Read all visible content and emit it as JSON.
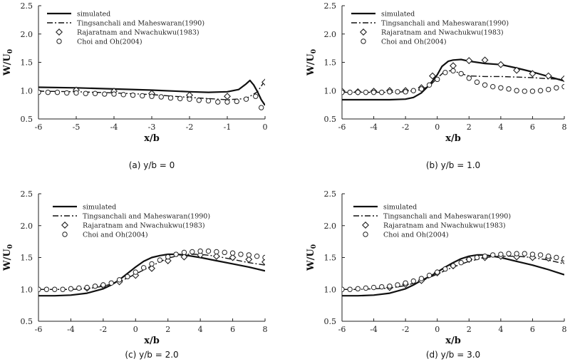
{
  "figure": {
    "panels": [
      {
        "caption": "(a) y/b = 0",
        "xlabel": "x/b",
        "ylabel_main": "W/U",
        "ylabel_sub": "0",
        "xlim": [
          -6,
          0
        ],
        "ylim": [
          0.5,
          2.5
        ],
        "xticks": [
          "-6",
          "-5",
          "-4",
          "-3",
          "-2",
          "-1",
          "0"
        ],
        "yticks": [
          "0.5",
          "1.0",
          "1.5",
          "2.0",
          "2.5"
        ],
        "legend": [
          "simulated",
          "Tingsanchali and Maheswaran(1990)",
          "Rajaratnam and Nwachukwu(1983)",
          "Choi and Oh(2004)"
        ]
      },
      {
        "caption": "(b) y/b = 1.0",
        "xlabel": "x/b",
        "ylabel_main": "W/U",
        "ylabel_sub": "0",
        "xlim": [
          -6,
          8
        ],
        "ylim": [
          0.5,
          2.5
        ],
        "xticks": [
          "-6",
          "-4",
          "-2",
          "0",
          "2",
          "4",
          "6",
          "8"
        ],
        "yticks": [
          "0.5",
          "1.0",
          "1.5",
          "2.0",
          "2.5"
        ],
        "legend": [
          "simulated",
          "Tingsanchali and Maheswaran(1990)",
          "Rajaratnam and Nwachukwu(1983)",
          "Choi and Oh(2004)"
        ]
      },
      {
        "caption": "(c) y/b = 2.0",
        "xlabel": "x/b",
        "ylabel_main": "W/U",
        "ylabel_sub": "0",
        "xlim": [
          -6,
          8
        ],
        "ylim": [
          0.5,
          2.5
        ],
        "xticks": [
          "-6",
          "-4",
          "-2",
          "0",
          "2",
          "4",
          "6",
          "8"
        ],
        "yticks": [
          "0.5",
          "1.0",
          "1.5",
          "2.0",
          "2.5"
        ],
        "legend": [
          "simulated",
          "Tingsanchali and Maheswaran(1990)",
          "Rajaratnam and Nwachukwu(1983)",
          "Choi and Oh(2004)"
        ]
      },
      {
        "caption": "(d) y/b = 3.0",
        "xlabel": "x/b",
        "ylabel_main": "W/U",
        "ylabel_sub": "0",
        "xlim": [
          -6,
          8
        ],
        "ylim": [
          0.5,
          2.5
        ],
        "xticks": [
          "-6",
          "-4",
          "-2",
          "0",
          "2",
          "4",
          "6",
          "8"
        ],
        "yticks": [
          "0.5",
          "1.0",
          "1.5",
          "2.0",
          "2.5"
        ],
        "legend": [
          "simulated",
          "Tingsanchali and Maheswaran(1990)",
          "Rajaratnam and Nwachukwu(1983)",
          "Choi and Oh(2004)"
        ]
      }
    ]
  },
  "chart_data": [
    {
      "type": "line",
      "series": [
        {
          "name": "simulated",
          "style": "solid",
          "x": [
            -6,
            -5,
            -4,
            -3,
            -2,
            -1.5,
            -1,
            -0.7,
            -0.5,
            -0.4,
            -0.3,
            -0.2,
            -0.1,
            0
          ],
          "y": [
            1.06,
            1.05,
            1.03,
            1.01,
            0.98,
            0.97,
            0.98,
            1.02,
            1.12,
            1.18,
            1.1,
            0.98,
            0.84,
            0.74
          ]
        },
        {
          "name": "Tingsanchali and Maheswaran(1990)",
          "style": "dashdot",
          "x": [
            -6,
            -5,
            -4,
            -3,
            -2,
            -1,
            -0.5,
            -0.2,
            0
          ],
          "y": [
            0.99,
            0.98,
            0.96,
            0.93,
            0.88,
            0.84,
            0.86,
            0.98,
            1.18
          ]
        },
        {
          "name": "Rajaratnam and Nwachukwu(1983)",
          "style": "diamond",
          "x": [
            -5,
            -4,
            -3,
            -2,
            -1,
            0
          ],
          "y": [
            1.01,
            0.99,
            0.95,
            0.92,
            0.9,
            1.15
          ]
        },
        {
          "name": "Choi and Oh(2004)",
          "style": "circle",
          "x": [
            -6,
            -5.75,
            -5.5,
            -5.25,
            -5,
            -4.75,
            -4.5,
            -4.25,
            -4,
            -3.75,
            -3.5,
            -3.25,
            -3,
            -2.75,
            -2.5,
            -2.25,
            -2,
            -1.75,
            -1.5,
            -1.25,
            -1,
            -0.75,
            -0.5,
            -0.25,
            -0.1
          ],
          "y": [
            0.97,
            0.97,
            0.97,
            0.96,
            0.96,
            0.95,
            0.95,
            0.94,
            0.94,
            0.93,
            0.92,
            0.91,
            0.9,
            0.89,
            0.87,
            0.86,
            0.85,
            0.83,
            0.82,
            0.8,
            0.8,
            0.81,
            0.85,
            0.9,
            0.7
          ]
        }
      ],
      "xlabel": "x/b",
      "ylabel": "W/U0",
      "xlim": [
        -6,
        0
      ],
      "ylim": [
        0.5,
        2.5
      ],
      "legend": "top-left",
      "grid": false
    },
    {
      "type": "line",
      "series": [
        {
          "name": "simulated",
          "style": "solid",
          "x": [
            -6,
            -3,
            -2,
            -1.5,
            -1,
            -0.5,
            0,
            0.3,
            0.7,
            1,
            1.5,
            2,
            3,
            4,
            5,
            6,
            7,
            8
          ],
          "y": [
            0.84,
            0.84,
            0.85,
            0.88,
            0.96,
            1.1,
            1.28,
            1.43,
            1.52,
            1.54,
            1.55,
            1.52,
            1.48,
            1.46,
            1.4,
            1.33,
            1.25,
            1.17
          ]
        },
        {
          "name": "Tingsanchali and Maheswaran(1990)",
          "style": "dashdot",
          "x": [
            -6,
            -3,
            -2,
            -1,
            -0.5,
            0,
            0.5,
            1,
            1.5,
            2,
            3,
            4,
            5,
            6,
            7,
            8
          ],
          "y": [
            0.97,
            0.97,
            0.98,
            1.02,
            1.08,
            1.22,
            1.35,
            1.35,
            1.3,
            1.26,
            1.25,
            1.25,
            1.24,
            1.23,
            1.21,
            1.2
          ]
        },
        {
          "name": "Rajaratnam and Nwachukwu(1983)",
          "style": "diamond",
          "x": [
            -6,
            -5,
            -4,
            -3,
            -2,
            -1,
            -0.3,
            1,
            2,
            3,
            4,
            5,
            6,
            7,
            8
          ],
          "y": [
            0.99,
            0.98,
            0.99,
            1.0,
            1.0,
            1.05,
            1.26,
            1.44,
            1.53,
            1.54,
            1.46,
            1.36,
            1.3,
            1.26,
            1.21
          ]
        },
        {
          "name": "Choi and Oh(2004)",
          "style": "circle",
          "x": [
            -6,
            -5.5,
            -5,
            -4.5,
            -4,
            -3.5,
            -3,
            -2.5,
            -2,
            -1.5,
            -1,
            -0.5,
            0,
            0.5,
            1,
            1.5,
            2,
            2.5,
            3,
            3.5,
            4,
            4.5,
            5,
            5.5,
            6,
            6.5,
            7,
            7.5,
            8
          ],
          "y": [
            0.97,
            0.97,
            0.97,
            0.97,
            0.97,
            0.97,
            0.98,
            0.98,
            0.98,
            1.0,
            1.03,
            1.1,
            1.2,
            1.32,
            1.35,
            1.3,
            1.22,
            1.15,
            1.1,
            1.07,
            1.05,
            1.03,
            1.0,
            0.99,
            0.99,
            1.0,
            1.02,
            1.05,
            1.07
          ]
        }
      ],
      "xlabel": "x/b",
      "ylabel": "W/U0",
      "xlim": [
        -6,
        8
      ],
      "ylim": [
        0.5,
        2.5
      ],
      "legend": "top-left",
      "grid": false
    },
    {
      "type": "line",
      "series": [
        {
          "name": "simulated",
          "style": "solid",
          "x": [
            -6,
            -5,
            -4,
            -3,
            -2,
            -1.5,
            -1,
            -0.5,
            0,
            0.5,
            1,
            1.5,
            2,
            2.5,
            3,
            4,
            5,
            6,
            7,
            8
          ],
          "y": [
            0.9,
            0.9,
            0.91,
            0.94,
            1.01,
            1.07,
            1.15,
            1.25,
            1.35,
            1.44,
            1.5,
            1.53,
            1.55,
            1.55,
            1.54,
            1.5,
            1.45,
            1.4,
            1.35,
            1.29
          ]
        },
        {
          "name": "Tingsanchali and Maheswaran(1990)",
          "style": "dashdot",
          "x": [
            -6,
            -5,
            -4,
            -3,
            -2,
            -1,
            0,
            1,
            2,
            3,
            4,
            5,
            6,
            7,
            8
          ],
          "y": [
            1.0,
            1.0,
            1.0,
            1.01,
            1.05,
            1.12,
            1.24,
            1.37,
            1.49,
            1.55,
            1.55,
            1.52,
            1.47,
            1.42,
            1.38
          ]
        },
        {
          "name": "Rajaratnam and Nwachukwu(1983)",
          "style": "diamond",
          "x": [
            -3,
            -2,
            -1,
            0,
            1,
            2,
            3,
            4,
            5,
            6,
            7,
            8
          ],
          "y": [
            1.02,
            1.06,
            1.12,
            1.22,
            1.33,
            1.45,
            1.51,
            1.54,
            1.52,
            1.5,
            1.47,
            1.43
          ]
        },
        {
          "name": "Choi and Oh(2004)",
          "style": "circle",
          "x": [
            -6,
            -5.5,
            -5,
            -4.5,
            -4,
            -3.5,
            -3,
            -2.5,
            -2,
            -1.5,
            -1,
            -0.5,
            0,
            0.5,
            1,
            1.5,
            2,
            2.5,
            3,
            3.5,
            4,
            4.5,
            5,
            5.5,
            6,
            6.5,
            7,
            7.5,
            8
          ],
          "y": [
            1.0,
            1.0,
            1.0,
            1.0,
            1.01,
            1.02,
            1.03,
            1.05,
            1.07,
            1.1,
            1.15,
            1.2,
            1.27,
            1.34,
            1.4,
            1.46,
            1.51,
            1.55,
            1.58,
            1.59,
            1.6,
            1.6,
            1.59,
            1.58,
            1.57,
            1.55,
            1.54,
            1.52,
            1.5
          ]
        }
      ],
      "xlabel": "x/b",
      "ylabel": "W/U0",
      "xlim": [
        -6,
        8
      ],
      "ylim": [
        0.5,
        2.5
      ],
      "legend": "top-left",
      "grid": false
    },
    {
      "type": "line",
      "series": [
        {
          "name": "simulated",
          "style": "solid",
          "x": [
            -6,
            -5,
            -4,
            -3,
            -2,
            -1.5,
            -1,
            -0.5,
            0,
            0.5,
            1,
            1.5,
            2,
            2.5,
            3,
            4,
            5,
            6,
            7,
            8
          ],
          "y": [
            0.9,
            0.9,
            0.91,
            0.94,
            1.01,
            1.07,
            1.14,
            1.2,
            1.27,
            1.35,
            1.42,
            1.48,
            1.52,
            1.54,
            1.54,
            1.5,
            1.44,
            1.38,
            1.31,
            1.23
          ]
        },
        {
          "name": "Tingsanchali and Maheswaran(1990)",
          "style": "dashdot",
          "x": [
            -6,
            -5,
            -4,
            -3,
            -2,
            -1,
            0,
            1,
            2,
            3,
            4,
            5,
            6,
            7,
            8
          ],
          "y": [
            1.0,
            1.0,
            1.01,
            1.02,
            1.06,
            1.13,
            1.24,
            1.35,
            1.44,
            1.5,
            1.52,
            1.52,
            1.5,
            1.46,
            1.4
          ]
        },
        {
          "name": "Rajaratnam and Nwachukwu(1983)",
          "style": "diamond",
          "x": [
            -3,
            -2,
            -1,
            0,
            1,
            2,
            3,
            4,
            5,
            6,
            7,
            8
          ],
          "y": [
            1.03,
            1.08,
            1.14,
            1.26,
            1.37,
            1.47,
            1.5,
            1.52,
            1.51,
            1.5,
            1.49,
            1.45
          ]
        },
        {
          "name": "Choi and Oh(2004)",
          "style": "circle",
          "x": [
            -6,
            -5.5,
            -5,
            -4.5,
            -4,
            -3.5,
            -3,
            -2.5,
            -2,
            -1.5,
            -1,
            -0.5,
            0,
            0.5,
            1,
            1.5,
            2,
            2.5,
            3,
            3.5,
            4,
            4.5,
            5,
            5.5,
            6,
            6.5,
            7,
            7.5,
            8
          ],
          "y": [
            1.0,
            1.0,
            1.01,
            1.02,
            1.03,
            1.04,
            1.05,
            1.07,
            1.1,
            1.13,
            1.17,
            1.22,
            1.27,
            1.32,
            1.37,
            1.42,
            1.47,
            1.5,
            1.52,
            1.54,
            1.55,
            1.56,
            1.56,
            1.56,
            1.55,
            1.54,
            1.52,
            1.5,
            1.48
          ]
        }
      ],
      "xlabel": "x/b",
      "ylabel": "W/U0",
      "xlim": [
        -6,
        8
      ],
      "ylim": [
        0.5,
        2.5
      ],
      "legend": "top-left",
      "grid": false
    }
  ]
}
